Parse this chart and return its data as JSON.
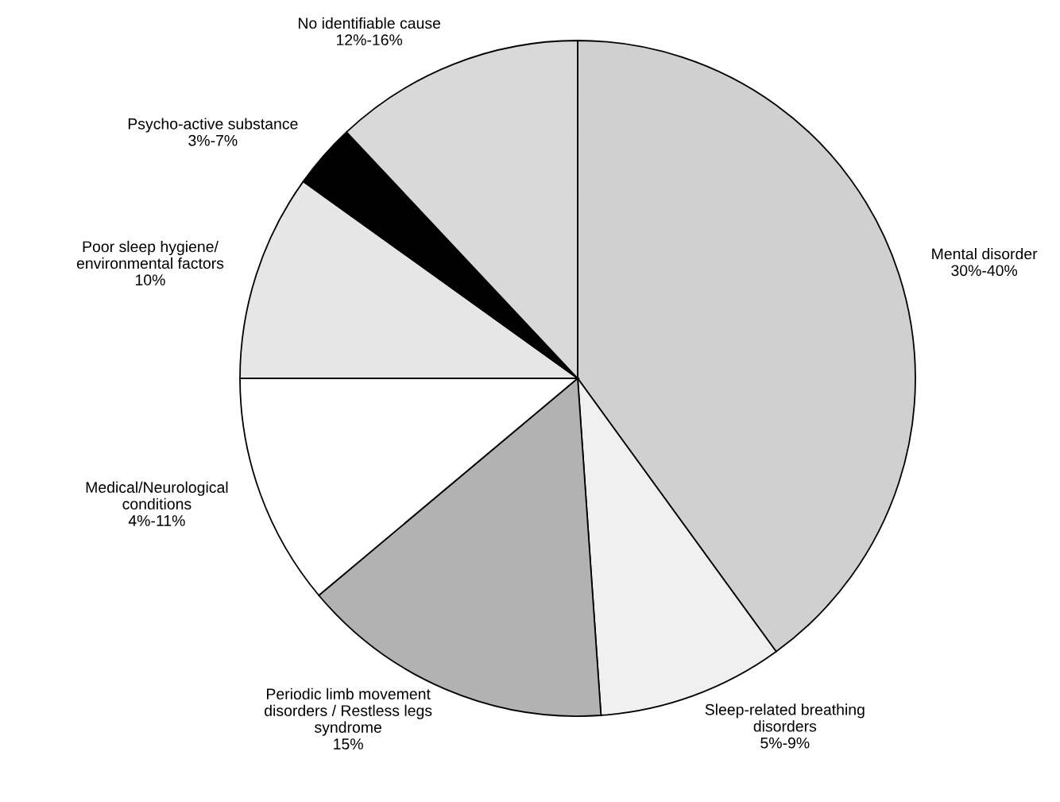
{
  "chart_data": {
    "type": "pie",
    "categories": [
      "Mental disorder\n30%-40%",
      "Sleep-related breathing\ndisorders\n5%-9%",
      "Periodic limb movement\ndisorders / Restless legs\nsyndrome\n15%",
      "Medical/Neurological\nconditions\n4%-11%",
      "Poor sleep hygiene/\nenvironmental factors\n10%",
      "Psycho-active substance\n3%-7%",
      "No identifiable cause\n12%-16%"
    ],
    "values": [
      40,
      8.9,
      15,
      11.1,
      9.9,
      3.1,
      12.0
    ],
    "colors": [
      "#d0d0d0",
      "#f0f0f0",
      "#b2b2b2",
      "#ffffff",
      "#e6e6e6",
      "#000000",
      "#d9d9d9"
    ]
  }
}
